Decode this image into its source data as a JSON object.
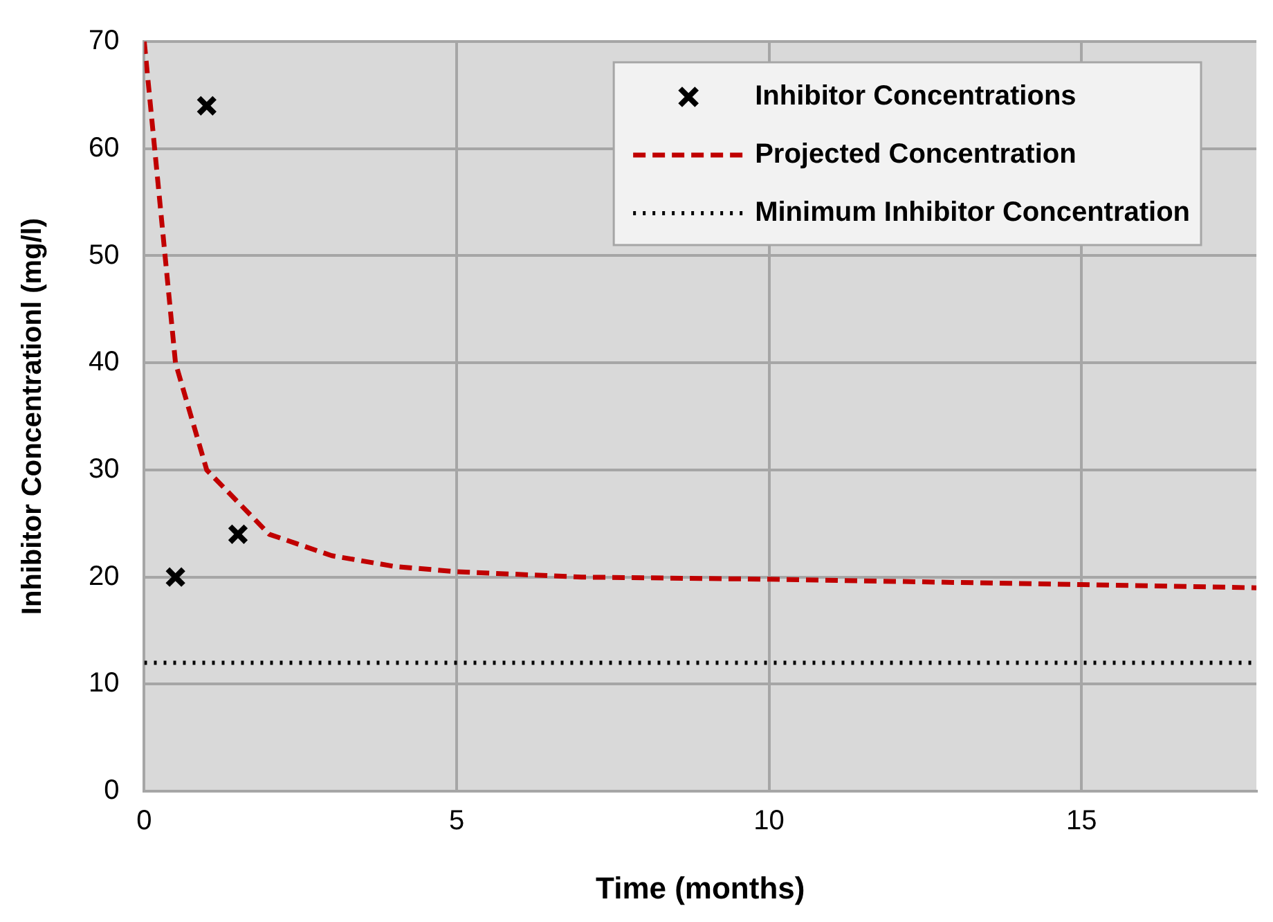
{
  "chart_data": {
    "type": "scatter",
    "xlabel": "Time (months)",
    "ylabel": "Inhibitor Concentrationl (mg/l)",
    "xlim": [
      0,
      17.8
    ],
    "xticks": [
      0,
      5,
      10,
      15
    ],
    "ylim": [
      0,
      70
    ],
    "yticks": [
      0,
      10,
      20,
      30,
      40,
      50,
      60,
      70
    ],
    "grid": true,
    "legend": "top right",
    "series": [
      {
        "name": "Inhibitor Concentrations",
        "color": "#000000",
        "marker": "cross",
        "x": [
          0.5,
          1,
          1.5
        ],
        "values": [
          20,
          64,
          24
        ]
      },
      {
        "name": "Projected Concentration",
        "type": "line",
        "color": "#c00000",
        "marker": "none",
        "line_style": "dashed",
        "x": [
          0,
          0.5,
          1,
          2,
          3,
          4,
          5,
          7,
          10,
          15,
          17.8
        ],
        "values": [
          70,
          40,
          30,
          24,
          22,
          21,
          20.5,
          20,
          19.8,
          19.3,
          19
        ]
      },
      {
        "name": "Minimum Inhibitor Concentration",
        "type": "line",
        "color": "#000000",
        "marker": "none",
        "line_style": "dotted",
        "x": [
          0,
          17.8
        ],
        "values": [
          12,
          12
        ]
      }
    ]
  }
}
